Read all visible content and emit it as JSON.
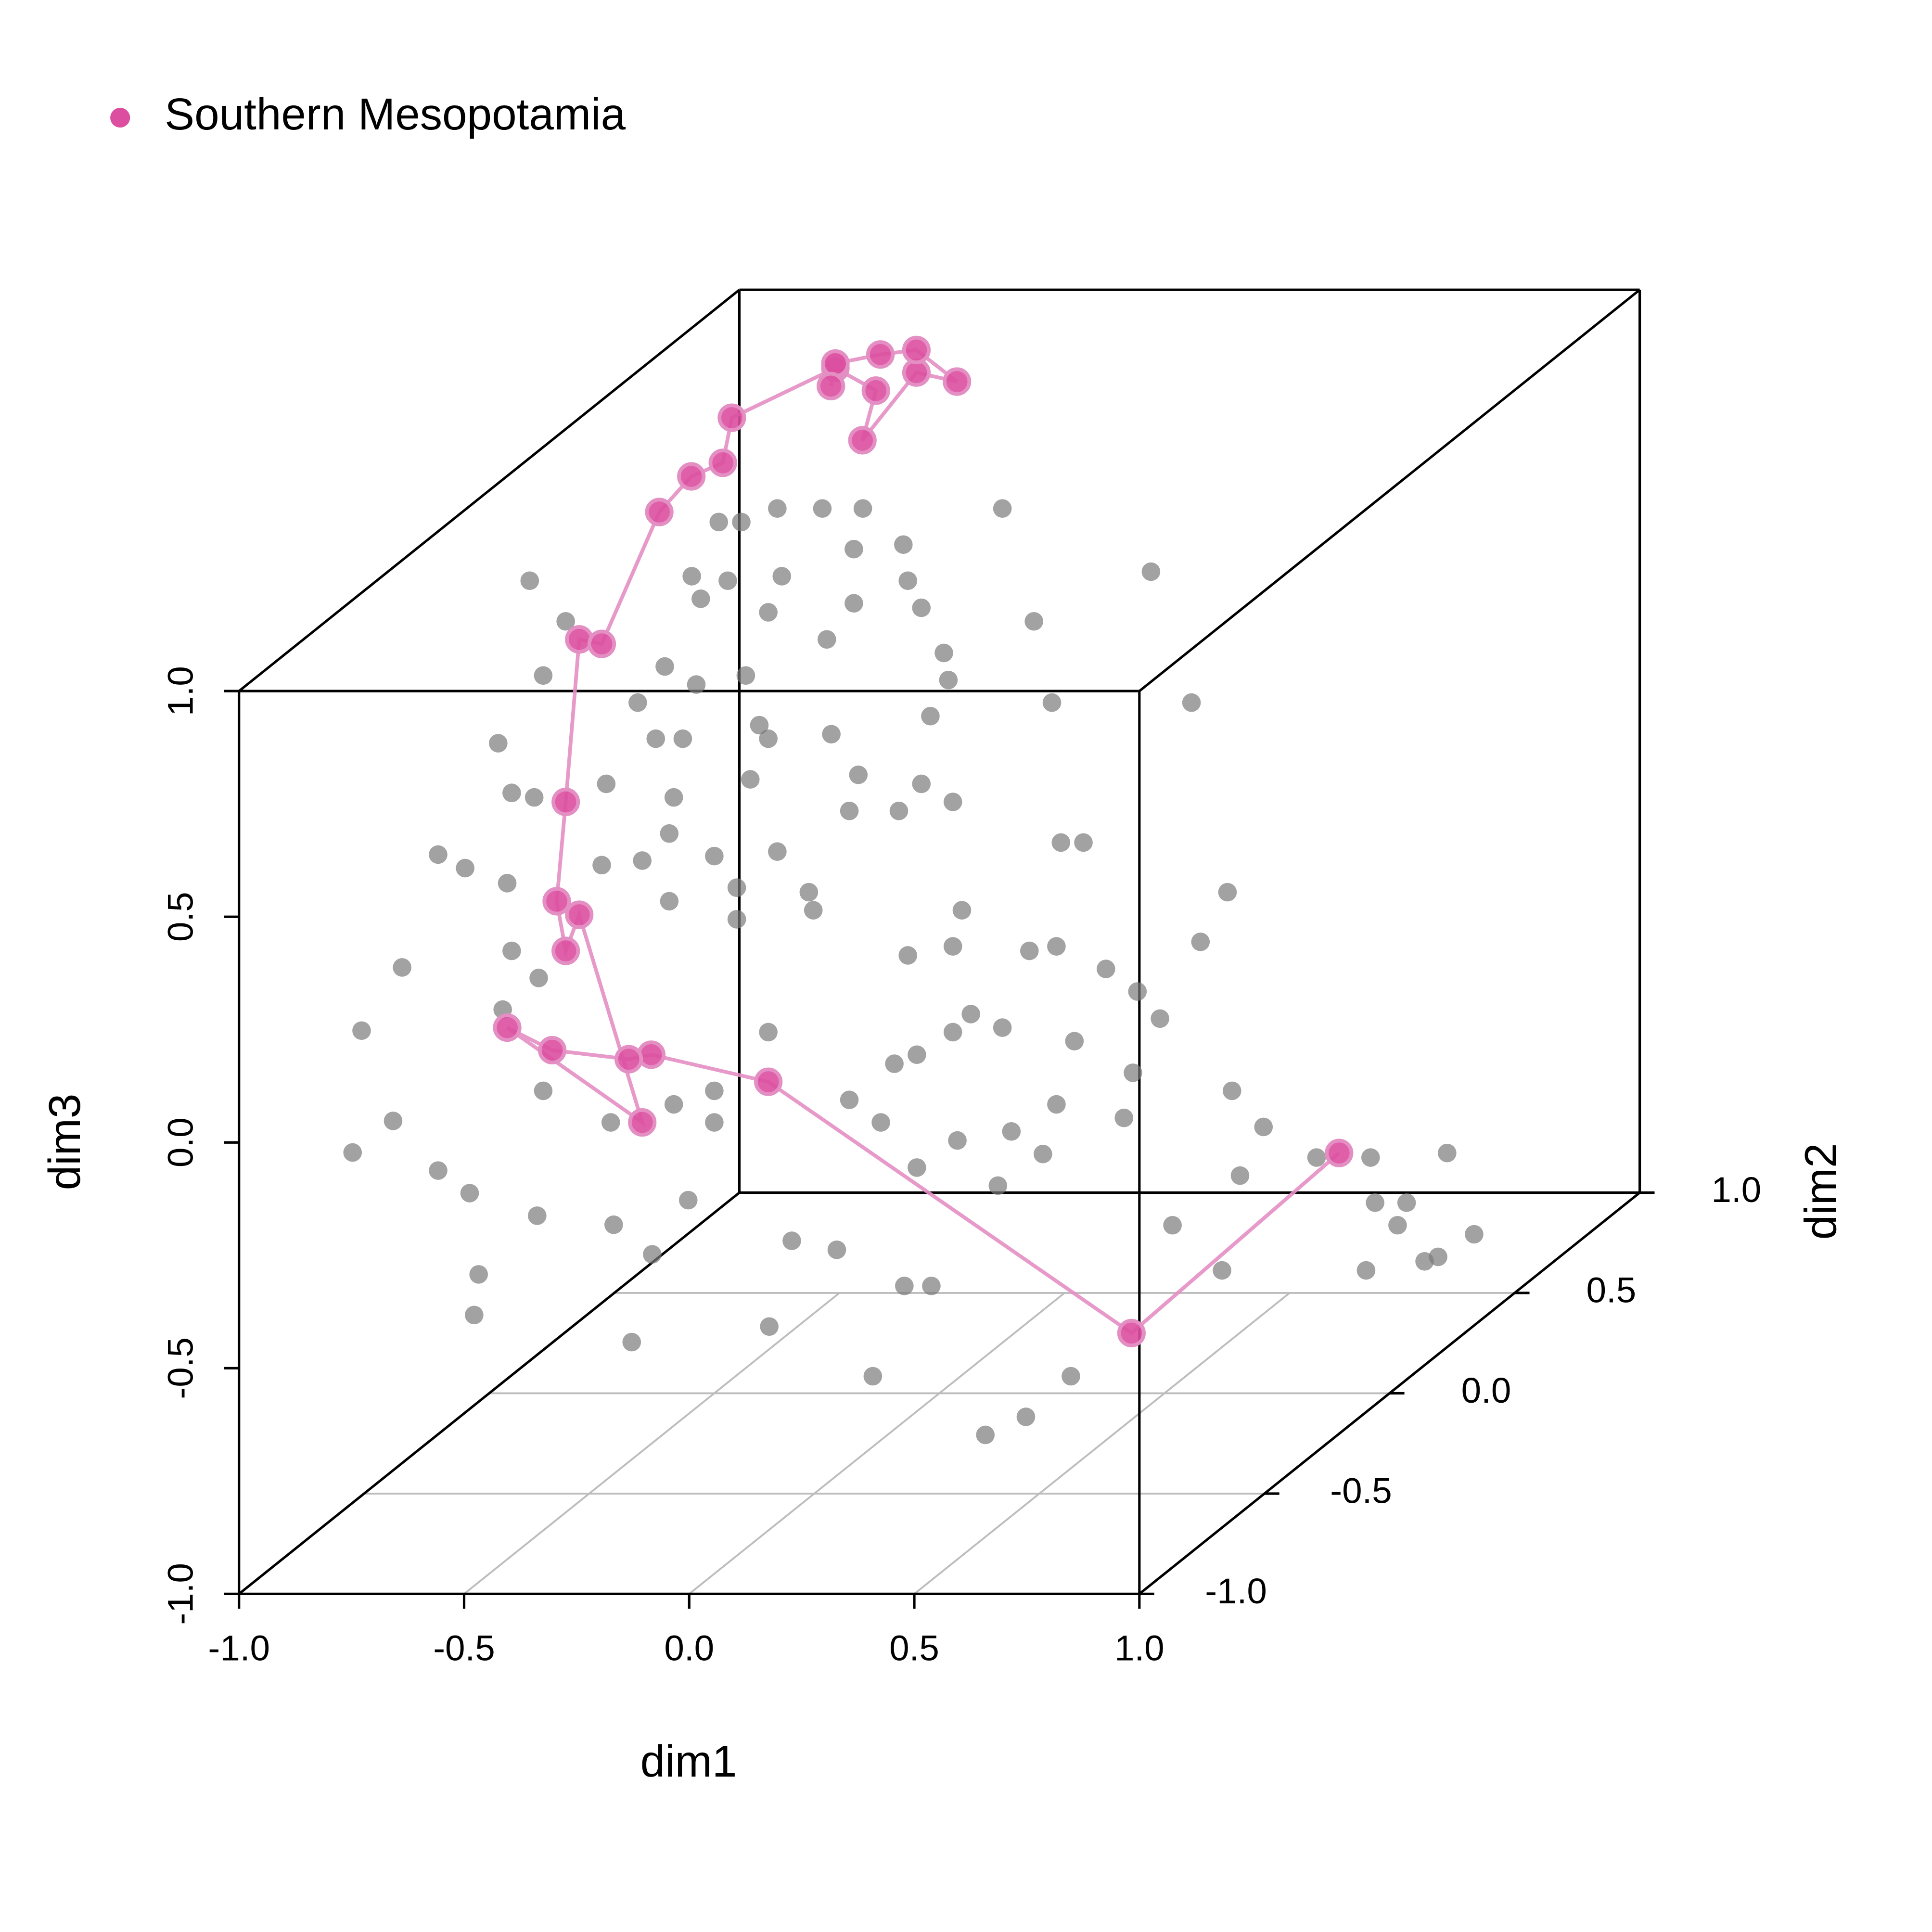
{
  "chart_data": {
    "type": "scatter3d",
    "xlabel": "dim1",
    "ylabel": "dim2",
    "zlabel": "dim3",
    "xlim": [
      -1,
      1
    ],
    "ylim": [
      -1,
      1
    ],
    "zlim": [
      -1,
      1
    ],
    "xticks": [
      {
        "value": -1,
        "label": "-1.0"
      },
      {
        "value": -0.5,
        "label": "-0.5"
      },
      {
        "value": 0,
        "label": "0.0"
      },
      {
        "value": 0.5,
        "label": "0.5"
      },
      {
        "value": 1,
        "label": "1.0"
      }
    ],
    "yticks": [
      {
        "value": -1,
        "label": "-1.0"
      },
      {
        "value": -0.5,
        "label": "-0.5"
      },
      {
        "value": 0,
        "label": "0.0"
      },
      {
        "value": 0.5,
        "label": "0.5"
      },
      {
        "value": 1,
        "label": "1.0"
      }
    ],
    "zticks": [
      {
        "value": -1,
        "label": "-1.0"
      },
      {
        "value": -0.5,
        "label": "-0.5"
      },
      {
        "value": 0,
        "label": "0.0"
      },
      {
        "value": 0.5,
        "label": "0.5"
      },
      {
        "value": 1,
        "label": "1.0"
      }
    ],
    "floor_grid": true,
    "series": [
      {
        "color": "#7a7a7a",
        "x": [
          -0.91,
          -0.83,
          -0.88,
          -0.98,
          -0.95,
          -0.9,
          -0.74,
          -0.96,
          -0.75,
          -0.95,
          -0.89,
          -0.97,
          -0.88,
          -0.73,
          -0.59,
          -0.5,
          -0.5,
          -0.66,
          -0.6,
          -0.5,
          -0.59,
          -0.6,
          -0.45,
          -0.45,
          -0.36,
          -0.42,
          -0.29,
          -0.28,
          -0.2,
          -0.09,
          -0.04,
          0.03,
          0.05,
          -0.07,
          0.03,
          0.27,
          0.32,
          0.2,
          0.26,
          0.37,
          0.44,
          0.49,
          0.14,
          0.07,
          0.03,
          -0.05,
          -0.1,
          -0.2,
          -0.13,
          -0.38,
          0.3,
          0.43,
          0.26,
          0.16,
          0.23,
          0.04,
          -0.05,
          0.13,
          0.41,
          0.65,
          0.72,
          0.14,
          0.47,
          0.56,
          0.64,
          0.58,
          0.21,
          0.25,
          -0.02,
          0.02,
          -0.08,
          -0.19,
          -0.19,
          -0.04,
          -0.07,
          0.01,
          -0.25,
          -0.4,
          -0.38,
          -0.24,
          -0.18,
          -0.61,
          -0.67,
          -0.63,
          -0.57,
          -0.54,
          -0.43,
          -0.38,
          -0.35,
          -0.53,
          -0.55,
          -0.47,
          -0.17,
          -0.26,
          -0.36,
          -0.44,
          -0.49,
          -0.97,
          -0.88,
          -0.78,
          -0.71,
          -0.56,
          -0.69,
          -0.7,
          -0.86,
          -0.95,
          -0.78,
          -0.72,
          -0.39,
          -0.35,
          0.85,
          0.69,
          0.76,
          0.91,
          0.74,
          0.67,
          0.8,
          0.83,
          0.56,
          0.68,
          0.39,
          0.24,
          0.35,
          -0.1,
          0.13,
          0.38,
          0.47,
          0.57,
          0.2,
          0.26,
          0.05,
          -0.05,
          -0.28,
          -0.36
        ],
        "y": [
          0,
          0,
          0,
          0,
          0,
          0,
          0,
          0,
          0,
          0,
          0,
          0,
          0,
          0,
          0,
          0,
          0,
          0,
          0,
          0,
          0,
          0,
          0,
          0,
          0,
          0,
          0,
          0,
          0,
          0,
          0,
          0,
          0,
          0,
          0,
          0,
          0,
          0,
          0,
          0,
          0,
          0,
          0,
          0,
          0,
          0,
          0,
          0,
          0,
          0,
          0,
          0,
          0,
          0,
          0,
          0,
          0,
          0,
          0,
          0,
          0,
          0,
          0,
          0,
          0,
          0,
          0,
          0,
          0,
          0,
          0,
          0,
          0,
          0,
          0,
          0,
          0,
          0,
          0,
          0,
          0,
          0,
          0,
          0,
          0,
          0,
          0,
          0,
          0,
          0,
          0,
          0,
          0,
          0,
          0,
          0,
          0,
          -0.6,
          -0.6,
          -0.6,
          -0.6,
          -0.6,
          -0.6,
          -0.6,
          -0.6,
          -0.6,
          -0.6,
          -0.6,
          -0.6,
          -0.6,
          0.5,
          0.5,
          0.5,
          0.5,
          0.5,
          0.5,
          0.5,
          0.5,
          0.5,
          0.5,
          0.5,
          0.5,
          0.5,
          -0.5,
          -0.5,
          -0.5,
          -0.5,
          -0.5,
          -0.5,
          -0.5,
          -0.5,
          -0.5,
          -0.5,
          -0.5
        ],
        "z": [
          0.8,
          0.71,
          0.59,
          0.44,
          0.33,
          0.32,
          0.35,
          0.13,
          0.17,
          -0.02,
          -0.08,
          -0.15,
          -0.33,
          -0.4,
          -0.36,
          -0.33,
          -0.4,
          0.18,
          0.24,
          0.19,
          0.32,
          0.09,
          0.12,
          0.05,
          0.2,
          0.36,
          0.11,
          0.07,
          0.29,
          0.29,
          0.35,
          0.31,
          0.07,
          -0.03,
          -0.01,
          0.22,
          0.22,
          -0.02,
          -0.01,
          -0.06,
          -0.11,
          -0.17,
          -0.19,
          -0.16,
          -0.2,
          -0.25,
          -0.27,
          -0.35,
          -0.4,
          -0.2,
          -0.22,
          -0.29,
          -0.36,
          -0.42,
          -0.47,
          -0.44,
          -0.5,
          -0.54,
          -0.39,
          -0.33,
          -0.41,
          0.96,
          0.82,
          0.53,
          0.11,
          0,
          0.71,
          0.53,
          0.5,
          0.58,
          0.88,
          0.87,
          0.75,
          0.74,
          0.8,
          0.64,
          0.67,
          0.48,
          0.45,
          0.46,
          0.37,
          0.61,
          0.53,
          0.45,
          0.45,
          0.57,
          0.59,
          0.73,
          0.81,
          0.76,
          0.81,
          0.8,
          0.96,
          0.96,
          0.96,
          0.93,
          0.93,
          -0.2,
          -0.13,
          -0.24,
          -0.29,
          -0.34,
          -0.47,
          -0.56,
          0.21,
          0.07,
          0.46,
          0.43,
          -0.36,
          -0.62,
          -0.69,
          -0.8,
          -0.8,
          -0.87,
          -0.85,
          -0.95,
          -0.93,
          -0.92,
          -0.7,
          -0.7,
          -0.74,
          -0.85,
          -0.95,
          -0.63,
          -0.74,
          -0.87,
          -0.83,
          -0.74,
          -0.54,
          -0.54,
          -0.46,
          -0.44,
          -0.35,
          -0.47
        ]
      },
      {
        "name": "Southern Mesopotamia",
        "color": "#dc4fa0",
        "line_color": "#e48fc3",
        "line": true,
        "x": [
          0.61,
          0.26,
          -0.38,
          -0.64,
          -0.69,
          -0.86,
          -0.96,
          -0.66,
          -0.8,
          -0.83,
          -0.85,
          -0.83,
          -0.8,
          -0.75,
          -0.9,
          -0.94,
          -0.87,
          -0.85,
          -0.62,
          -0.53,
          -0.56,
          -0.44,
          -0.35,
          -0.44,
          -0.52,
          -0.62,
          -0.63
        ],
        "y": [
          0.5,
          0.3,
          0,
          0,
          0,
          0,
          0,
          0,
          0,
          0,
          0,
          0,
          0,
          0,
          0.5,
          0.7,
          0.7,
          0.7,
          0.7,
          0.7,
          0.7,
          0.7,
          0.7,
          0.7,
          0.7,
          0.7,
          0.7
        ],
        "z": [
          -0.69,
          -1,
          -0.31,
          -0.25,
          -0.26,
          -0.24,
          -0.19,
          -0.4,
          0.06,
          -0.02,
          0.09,
          0.31,
          0.67,
          0.66,
          0.73,
          0.72,
          0.75,
          0.85,
          0.96,
          0.91,
          0.8,
          0.95,
          0.93,
          1,
          0.99,
          0.97,
          0.92
        ]
      }
    ]
  }
}
